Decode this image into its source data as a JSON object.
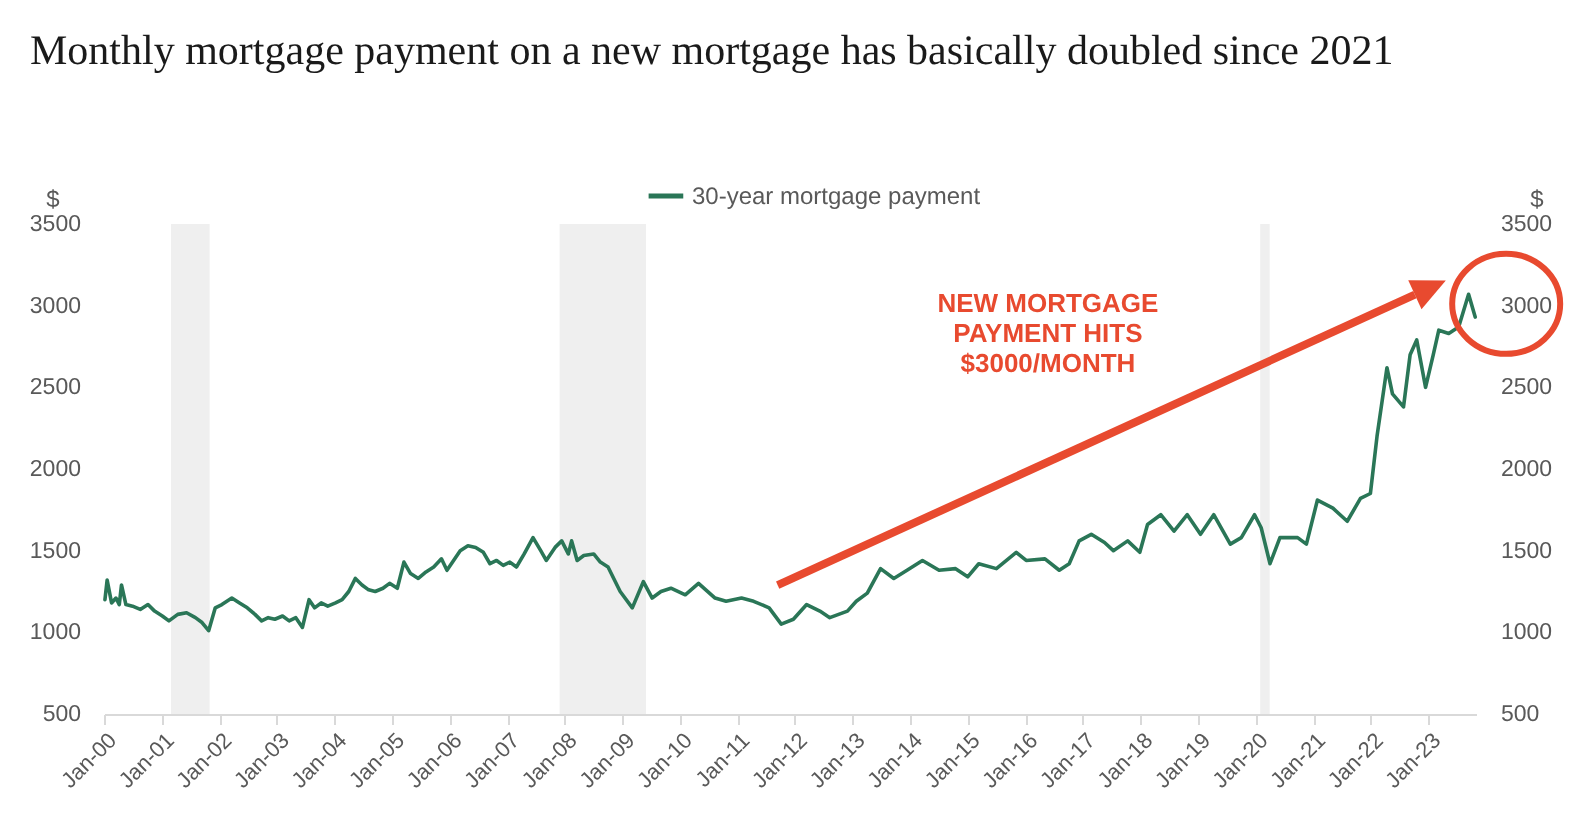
{
  "chart_data": {
    "type": "line",
    "title": "Monthly mortgage payment on a new mortgage has basically doubled since 2021",
    "ylabel": "$",
    "y2label": "$",
    "series": [
      {
        "name": "30-year mortgage payment",
        "color": "#2a7657",
        "x": [
          "2000-01-07",
          "2000-01-21",
          "2000-02-18",
          "2000-03-17",
          "2000-04-07",
          "2000-04-21",
          "2000-05-19",
          "2000-06-30",
          "2000-08-18",
          "2000-10-06",
          "2000-11-17",
          "2001-01-05",
          "2001-02-16",
          "2001-04-13",
          "2001-06-08",
          "2001-08-03",
          "2001-09-14",
          "2001-10-26",
          "2001-12-07",
          "2002-01-18",
          "2002-03-22",
          "2002-05-10",
          "2002-06-28",
          "2002-08-16",
          "2002-09-27",
          "2002-11-08",
          "2002-12-20",
          "2003-02-07",
          "2003-03-21",
          "2003-05-02",
          "2003-06-13",
          "2003-07-25",
          "2003-08-29",
          "2003-10-10",
          "2003-11-21",
          "2004-01-09",
          "2004-02-20",
          "2004-04-02",
          "2004-05-14",
          "2004-06-25",
          "2004-08-06",
          "2004-09-17",
          "2004-11-05",
          "2004-12-17",
          "2005-02-04",
          "2005-03-18",
          "2005-04-29",
          "2005-06-17",
          "2005-08-05",
          "2005-09-23",
          "2005-11-11",
          "2005-12-16",
          "2006-01-27",
          "2006-03-10",
          "2006-04-28",
          "2006-06-16",
          "2006-08-04",
          "2006-09-15",
          "2006-10-27",
          "2006-12-08",
          "2007-01-19",
          "2007-03-02",
          "2007-04-20",
          "2007-06-15",
          "2007-08-03",
          "2007-09-07",
          "2007-11-02",
          "2007-12-14",
          "2008-01-25",
          "2008-02-15",
          "2008-03-21",
          "2008-05-02",
          "2008-07-04",
          "2008-08-15",
          "2008-10-03",
          "2008-12-19",
          "2009-03-06",
          "2009-05-15",
          "2009-07-10",
          "2009-09-04",
          "2009-11-06",
          "2010-02-05",
          "2010-04-30",
          "2010-08-13",
          "2010-10-22",
          "2011-01-28",
          "2011-04-15",
          "2011-07-22",
          "2011-10-07",
          "2011-12-23",
          "2012-03-16",
          "2012-06-08",
          "2012-08-10",
          "2012-11-30",
          "2013-01-25",
          "2013-04-05",
          "2013-06-28",
          "2013-09-20",
          "2013-12-13",
          "2014-03-21",
          "2014-07-04",
          "2014-10-17",
          "2015-01-02",
          "2015-03-13",
          "2015-07-03",
          "2015-11-06",
          "2016-01-08",
          "2016-05-06",
          "2016-08-05",
          "2016-10-07",
          "2016-12-09",
          "2017-02-24",
          "2017-05-19",
          "2017-07-14",
          "2017-10-13",
          "2017-12-29",
          "2018-02-16",
          "2018-05-11",
          "2018-08-03",
          "2018-10-26",
          "2019-01-18",
          "2019-04-12",
          "2019-07-26",
          "2019-10-04",
          "2019-12-27",
          "2020-02-07",
          "2020-04-03",
          "2020-06-05",
          "2020-09-25",
          "2020-11-20",
          "2021-01-29",
          "2021-05-07",
          "2021-08-06",
          "2021-10-29",
          "2021-12-31",
          "2022-02-11",
          "2022-04-15",
          "2022-05-20",
          "2022-07-29",
          "2022-09-09",
          "2022-10-21",
          "2022-12-16",
          "2023-02-03",
          "2023-03-10",
          "2023-05-12",
          "2023-07-14",
          "2023-09-15",
          "2023-10-27"
        ],
        "values": [
          1200,
          1320,
          1180,
          1210,
          1170,
          1290,
          1170,
          1160,
          1140,
          1170,
          1130,
          1100,
          1070,
          1110,
          1120,
          1090,
          1060,
          1010,
          1150,
          1170,
          1210,
          1180,
          1150,
          1110,
          1070,
          1090,
          1080,
          1100,
          1070,
          1090,
          1030,
          1200,
          1150,
          1180,
          1160,
          1180,
          1200,
          1250,
          1330,
          1290,
          1260,
          1250,
          1270,
          1300,
          1270,
          1430,
          1360,
          1330,
          1370,
          1400,
          1450,
          1380,
          1440,
          1500,
          1530,
          1520,
          1490,
          1420,
          1440,
          1410,
          1430,
          1400,
          1480,
          1580,
          1500,
          1440,
          1520,
          1560,
          1480,
          1560,
          1440,
          1470,
          1480,
          1430,
          1400,
          1250,
          1150,
          1310,
          1210,
          1250,
          1270,
          1230,
          1300,
          1210,
          1190,
          1210,
          1190,
          1150,
          1050,
          1080,
          1170,
          1130,
          1090,
          1130,
          1190,
          1240,
          1390,
          1330,
          1380,
          1440,
          1380,
          1390,
          1340,
          1420,
          1390,
          1490,
          1440,
          1450,
          1380,
          1420,
          1560,
          1600,
          1550,
          1500,
          1560,
          1490,
          1660,
          1720,
          1620,
          1720,
          1600,
          1720,
          1540,
          1580,
          1720,
          1640,
          1420,
          1580,
          1580,
          1540,
          1810,
          1760,
          1680,
          1820,
          1850,
          2200,
          2620,
          2460,
          2380,
          2700,
          2790,
          2500,
          2700,
          2850,
          2830,
          2870,
          3070,
          2930
        ]
      }
    ],
    "xlim": [
      "2000-01",
      "2023-11"
    ],
    "xticks": [
      {
        "value": "2000-01",
        "label": "Jan-00"
      },
      {
        "value": "2001-01",
        "label": "Jan-01"
      },
      {
        "value": "2002-01",
        "label": "Jan-02"
      },
      {
        "value": "2003-01",
        "label": "Jan-03"
      },
      {
        "value": "2004-01",
        "label": "Jan-04"
      },
      {
        "value": "2005-01",
        "label": "Jan-05"
      },
      {
        "value": "2006-01",
        "label": "Jan-06"
      },
      {
        "value": "2007-01",
        "label": "Jan-07"
      },
      {
        "value": "2008-01",
        "label": "Jan-08"
      },
      {
        "value": "2009-01",
        "label": "Jan-09"
      },
      {
        "value": "2010-01",
        "label": "Jan-10"
      },
      {
        "value": "2011-01",
        "label": "Jan-11"
      },
      {
        "value": "2012-01",
        "label": "Jan-12"
      },
      {
        "value": "2013-01",
        "label": "Jan-13"
      },
      {
        "value": "2014-01",
        "label": "Jan-14"
      },
      {
        "value": "2015-01",
        "label": "Jan-15"
      },
      {
        "value": "2016-01",
        "label": "Jan-16"
      },
      {
        "value": "2017-01",
        "label": "Jan-17"
      },
      {
        "value": "2018-01",
        "label": "Jan-18"
      },
      {
        "value": "2019-01",
        "label": "Jan-19"
      },
      {
        "value": "2020-01",
        "label": "Jan-20"
      },
      {
        "value": "2021-01",
        "label": "Jan-21"
      },
      {
        "value": "2022-01",
        "label": "Jan-22"
      },
      {
        "value": "2023-01",
        "label": "Jan-23"
      }
    ],
    "ylim": [
      500,
      3500
    ],
    "yticks": [
      500,
      1000,
      1500,
      2000,
      2500,
      3000,
      3500
    ],
    "y2lim": [
      500,
      3500
    ],
    "y2ticks": [
      500,
      1000,
      1500,
      2000,
      2500,
      3000,
      3500
    ],
    "bands": [
      {
        "axis": "x",
        "from": "2001-03",
        "to": "2001-11",
        "color": "#efefef"
      },
      {
        "axis": "x",
        "from": "2007-12",
        "to": "2009-06",
        "color": "#efefef"
      },
      {
        "axis": "x",
        "from": "2020-02",
        "to": "2020-04",
        "color": "#efefef"
      }
    ],
    "annotations": [
      "NEW MORTGAGE\nPAYMENT HITS\n$3000/MONTH"
    ],
    "grid": false,
    "legend": "top"
  }
}
